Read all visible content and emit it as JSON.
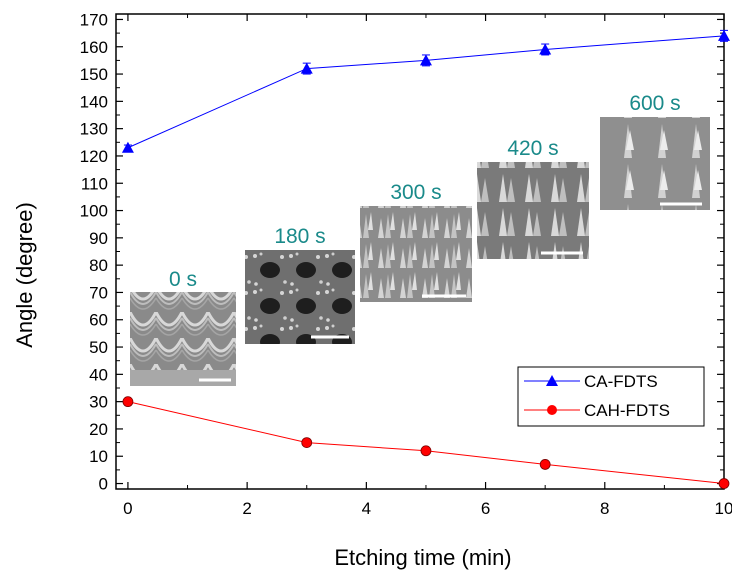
{
  "chart_data": {
    "type": "line",
    "xlabel": "Etching time (min)",
    "ylabel": "Angle (degree)",
    "xlim": [
      -0.2,
      10
    ],
    "ylim": [
      -2,
      172
    ],
    "x_ticks": [
      "0",
      "2",
      "4",
      "6",
      "8",
      "10"
    ],
    "y_ticks": [
      "0",
      "10",
      "20",
      "30",
      "40",
      "50",
      "60",
      "70",
      "80",
      "90",
      "100",
      "110",
      "120",
      "130",
      "140",
      "150",
      "160",
      "170"
    ],
    "series": [
      {
        "name": "CA-FDTS",
        "color": "#0000ff",
        "marker": "triangle",
        "x": [
          0,
          3,
          5,
          7,
          10
        ],
        "y": [
          123,
          152,
          155,
          159,
          164
        ],
        "err": [
          1,
          2,
          2,
          2,
          2
        ]
      },
      {
        "name": "CAH-FDTS",
        "color": "#ff0000",
        "marker": "circle",
        "x": [
          0,
          3,
          5,
          7,
          10
        ],
        "y": [
          30,
          15,
          12,
          7,
          0
        ],
        "err": [
          1,
          1,
          1,
          1,
          1
        ]
      }
    ],
    "legend_position": "lower-right",
    "insets": [
      {
        "label": "0 s"
      },
      {
        "label": "180 s"
      },
      {
        "label": "300 s"
      },
      {
        "label": "420 s"
      },
      {
        "label": "600 s"
      }
    ],
    "inset_label_color": "#1a8a8a"
  }
}
